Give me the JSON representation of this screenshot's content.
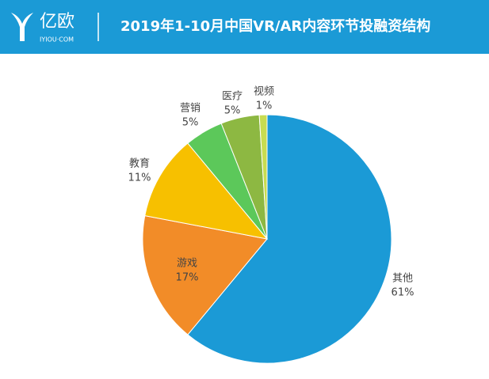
{
  "logo": {
    "name": "亿欧",
    "domain": "IYIOU·COM"
  },
  "chart_data": {
    "type": "pie",
    "title": "2019年1-10月中国VR/AR内容环节投融资结构",
    "categories": [
      "其他",
      "游戏",
      "教育",
      "营销",
      "医疗",
      "视频"
    ],
    "values": [
      61,
      17,
      11,
      5,
      5,
      1
    ],
    "value_labels": [
      "61%",
      "17%",
      "11%",
      "5%",
      "5%",
      "1%"
    ],
    "colors": [
      "#1b9ad6",
      "#f28c28",
      "#f7c000",
      "#5cc85a",
      "#8db842",
      "#c8dc50"
    ]
  }
}
